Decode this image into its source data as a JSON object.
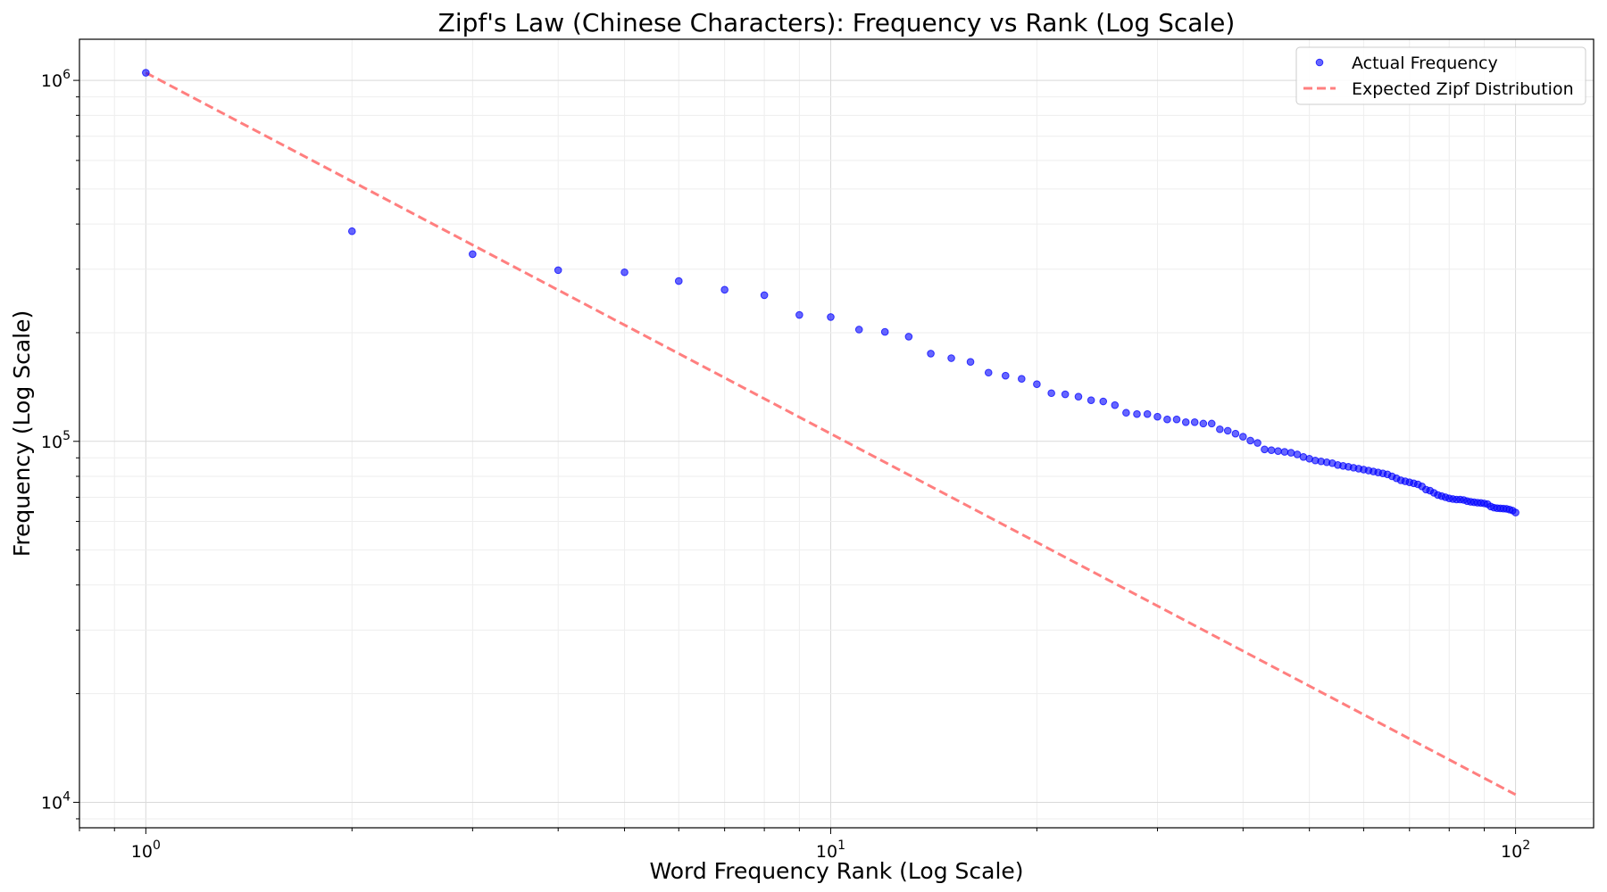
{
  "chart_data": {
    "type": "scatter",
    "title": "Zipf's Law (Chinese Characters): Frequency vs Rank (Log Scale)",
    "xlabel": "Word Frequency Rank (Log Scale)",
    "ylabel": "Frequency (Log Scale)",
    "x_scale": "log",
    "y_scale": "log",
    "xlim": [
      0.8,
      130
    ],
    "ylim": [
      8500,
      1300000
    ],
    "x_ticks": [
      {
        "value": 1,
        "base": "10",
        "exp": "0"
      },
      {
        "value": 10,
        "base": "10",
        "exp": "1"
      },
      {
        "value": 100,
        "base": "10",
        "exp": "2"
      }
    ],
    "y_ticks": [
      {
        "value": 10000,
        "base": "10",
        "exp": "4"
      },
      {
        "value": 100000,
        "base": "10",
        "exp": "5"
      },
      {
        "value": 1000000,
        "base": "10",
        "exp": "6"
      }
    ],
    "grid": true,
    "legend_position": "top-right",
    "series": [
      {
        "name": "Actual Frequency",
        "kind": "scatter",
        "color": "#0000ff",
        "x": [
          1,
          2,
          3,
          4,
          5,
          6,
          7,
          8,
          9,
          10,
          11,
          12,
          13,
          14,
          15,
          16,
          17,
          18,
          19,
          20,
          21,
          22,
          23,
          24,
          25,
          26,
          27,
          28,
          29,
          30,
          31,
          32,
          33,
          34,
          35,
          36,
          37,
          38,
          39,
          40,
          41,
          42,
          43,
          44,
          45,
          46,
          47,
          48,
          49,
          50,
          51,
          52,
          53,
          54,
          55,
          56,
          57,
          58,
          59,
          60,
          61,
          62,
          63,
          64,
          65,
          66,
          67,
          68,
          69,
          70,
          71,
          72,
          73,
          74,
          75,
          76,
          77,
          78,
          79,
          80,
          81,
          82,
          83,
          84,
          85,
          86,
          87,
          88,
          89,
          90,
          91,
          92,
          93,
          94,
          95,
          96,
          97,
          98,
          99,
          100
        ],
        "y": [
          1050000,
          382000,
          330000,
          298000,
          294000,
          278000,
          263000,
          254000,
          224000,
          221000,
          204000,
          201000,
          195000,
          175000,
          170000,
          166000,
          155000,
          152000,
          149000,
          144000,
          136000,
          135000,
          133000,
          130000,
          129000,
          126000,
          120000,
          119000,
          119000,
          117000,
          115000,
          115000,
          113000,
          113000,
          112000,
          112000,
          108000,
          107000,
          105000,
          103000,
          100500,
          99000,
          95000,
          94500,
          94000,
          93500,
          93000,
          92000,
          90500,
          89500,
          88500,
          88000,
          87500,
          87000,
          86000,
          85500,
          85000,
          84500,
          84000,
          83500,
          83000,
          82500,
          82000,
          81500,
          81000,
          80000,
          79000,
          78000,
          77500,
          77000,
          76500,
          76000,
          75000,
          73500,
          73000,
          72000,
          71000,
          70500,
          70000,
          69500,
          69200,
          69000,
          69000,
          68800,
          68300,
          68000,
          67800,
          67600,
          67500,
          67300,
          67000,
          66000,
          65500,
          65300,
          65200,
          65100,
          65000,
          64700,
          64300,
          63500
        ]
      },
      {
        "name": "Expected Zipf Distribution",
        "kind": "line",
        "style": "dashed",
        "color": "#ff7f7f",
        "x": [
          1,
          100
        ],
        "y": [
          1050000,
          10500
        ]
      }
    ]
  }
}
